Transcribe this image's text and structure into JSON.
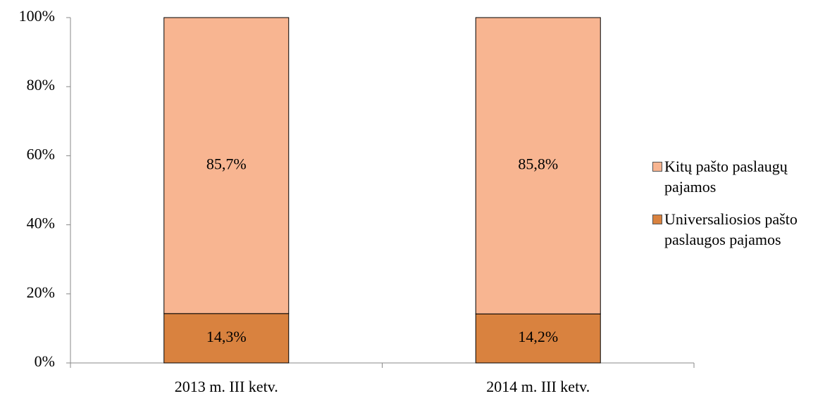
{
  "chart_data": {
    "type": "stacked_bar",
    "categories": [
      "2013 m. III ketv.",
      "2014 m. III ketv."
    ],
    "series": [
      {
        "name": "Universaliosios pašto paslaugos pajamos",
        "color": "#d9823f",
        "values": [
          14.3,
          14.2
        ],
        "value_labels": [
          "14,3%",
          "14,2%"
        ]
      },
      {
        "name": "Kitų pašto paslaugų pajamos",
        "color": "#f8b591",
        "values": [
          85.7,
          85.8
        ],
        "value_labels": [
          "85,7%",
          "85,8%"
        ]
      }
    ],
    "ylim": [
      0,
      100
    ],
    "yticks": [
      {
        "value": 0,
        "label": "0%"
      },
      {
        "value": 20,
        "label": "20%"
      },
      {
        "value": 40,
        "label": "40%"
      },
      {
        "value": 60,
        "label": "60%"
      },
      {
        "value": 80,
        "label": "80%"
      },
      {
        "value": 100,
        "label": "100%"
      }
    ],
    "legend": "right"
  }
}
